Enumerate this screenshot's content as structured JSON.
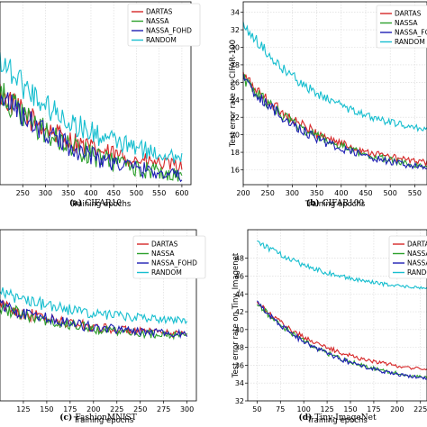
{
  "colors": {
    "DARTAS": "#d62728",
    "NASSA": "#2ca02c",
    "NASSA_FOHD": "#1f1fb4",
    "RANDOM": "#17becf"
  },
  "chart_data": [
    {
      "type": "line",
      "caption_label": "(a)",
      "caption_text": "CIFAR10",
      "xlabel": "Training epochs",
      "ylabel": "",
      "xlim": [
        200,
        620
      ],
      "ylim": [
        14,
        34
      ],
      "grid": true,
      "legend": "top-right",
      "xticks": [
        250,
        300,
        350,
        400,
        450,
        500,
        550,
        600
      ],
      "yticks": [],
      "x": [
        200,
        600
      ],
      "series": [
        {
          "name": "DARTAS",
          "values": [
            24,
            16
          ],
          "noise": 1.3
        },
        {
          "name": "NASSA",
          "values": [
            24,
            15
          ],
          "noise": 1.4
        },
        {
          "name": "NASSA_FOHD",
          "values": [
            24,
            15
          ],
          "noise": 1.3
        },
        {
          "name": "RANDOM",
          "values": [
            28,
            17
          ],
          "noise": 1.5
        }
      ]
    },
    {
      "type": "line",
      "caption_label": "(b)",
      "caption_text": "CIFAR100",
      "xlabel": "Training epochs",
      "ylabel": "Test error rate on CIFAR-100",
      "xlim": [
        200,
        575
      ],
      "ylim": [
        14.3,
        35.2
      ],
      "grid": true,
      "legend": "top-right",
      "xticks": [
        200,
        250,
        300,
        350,
        400,
        450,
        500,
        550
      ],
      "yticks": [
        16,
        18,
        20,
        22,
        24,
        26,
        28,
        30,
        32,
        34
      ],
      "x": [
        200,
        575
      ],
      "series": [
        {
          "name": "DARTAS",
          "values": [
            26.8,
            16.8
          ],
          "noise": 0.6
        },
        {
          "name": "NASSA",
          "values": [
            26.5,
            16.4
          ],
          "noise": 0.6
        },
        {
          "name": "NASSA_FOHD",
          "values": [
            26.3,
            16.2
          ],
          "noise": 0.6
        },
        {
          "name": "RANDOM",
          "values": [
            32.8,
            20.6
          ],
          "noise": 0.6
        }
      ]
    },
    {
      "type": "line",
      "caption_label": "(c)",
      "caption_text": "FashionMNIST",
      "xlabel": "Training epochs",
      "ylabel": "",
      "xlim": [
        100,
        310
      ],
      "ylim": [
        0,
        10
      ],
      "grid": true,
      "legend": "top-right",
      "xticks": [
        125,
        150,
        175,
        200,
        225,
        250,
        275,
        300
      ],
      "yticks": [],
      "x": [
        100,
        300
      ],
      "series": [
        {
          "name": "DARTAS",
          "values": [
            5.6,
            3.9
          ],
          "noise": 0.35
        },
        {
          "name": "NASSA",
          "values": [
            5.5,
            3.8
          ],
          "noise": 0.35
        },
        {
          "name": "NASSA_FOHD",
          "values": [
            5.6,
            3.9
          ],
          "noise": 0.35
        },
        {
          "name": "RANDOM",
          "values": [
            6.4,
            4.7
          ],
          "noise": 0.35
        }
      ]
    },
    {
      "type": "line",
      "caption_label": "(d)",
      "caption_text": "Tiny-ImageNet",
      "xlabel": "Training epochs",
      "ylabel": "Test error rate on Tiny_Imagenet",
      "xlim": [
        40,
        232
      ],
      "ylim": [
        32,
        51.2
      ],
      "grid": true,
      "legend": "top-right",
      "xticks": [
        50,
        75,
        100,
        125,
        150,
        175,
        200,
        225
      ],
      "yticks": [
        32,
        34,
        36,
        38,
        40,
        42,
        44,
        46,
        48
      ],
      "x": [
        50,
        232
      ],
      "series": [
        {
          "name": "DARTAS",
          "values": [
            43,
            35.5
          ],
          "noise": 0.3
        },
        {
          "name": "NASSA",
          "values": [
            43,
            34.6
          ],
          "noise": 0.3
        },
        {
          "name": "NASSA_FOHD",
          "values": [
            43,
            34.5
          ],
          "noise": 0.3
        },
        {
          "name": "RANDOM",
          "values": [
            50,
            44.6
          ],
          "noise": 0.3
        }
      ]
    }
  ],
  "legend_labels": {
    "a": [
      "DARTAS",
      "NASSA",
      "NASSA_FOHD",
      "RANDOM"
    ],
    "b": [
      "DARTAS",
      "NASSA",
      "NASSA_FOHD",
      "RANDOM"
    ],
    "c": [
      "DARTAS",
      "NASSA",
      "NASSA_FOHD",
      "RANDOM"
    ],
    "d": [
      "DARTAS",
      "NASSA",
      "NASSA_FOHD",
      "RANDOM"
    ]
  }
}
